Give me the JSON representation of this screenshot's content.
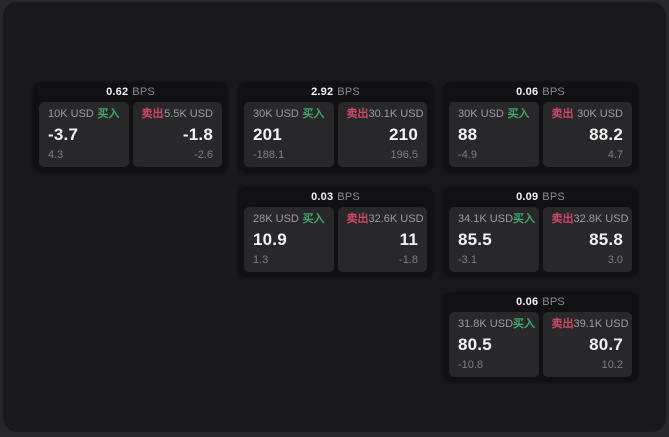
{
  "labels": {
    "bps_unit": "BPS",
    "buy": "买入",
    "sell": "卖出"
  },
  "colors": {
    "backdrop": "#27272a",
    "window-bg": "#19191c",
    "card-bg": "#111113",
    "panel-bg": "#28282b",
    "text-bright": "#f4f4f5",
    "text-gray": "#9b9ba1",
    "text-sub": "#7e7e84",
    "text-dim": "#8a8a90",
    "buy-green": "#3fa56a",
    "sell-red": "#cb4967"
  },
  "cards": [
    {
      "bps": "0.62",
      "buy": {
        "size": "10K USD",
        "price": "-3.7",
        "sub": "4.3"
      },
      "sell": {
        "size": "5.5K USD",
        "price": "-1.8",
        "sub": "-2.6"
      }
    },
    {
      "bps": "2.92",
      "buy": {
        "size": "30K USD",
        "price": "201",
        "sub": "-188.1"
      },
      "sell": {
        "size": "30.1K USD",
        "price": "210",
        "sub": "196.5"
      }
    },
    {
      "bps": "0.06",
      "buy": {
        "size": "30K USD",
        "price": "88",
        "sub": "-4.9"
      },
      "sell": {
        "size": "30K USD",
        "price": "88.2",
        "sub": "4.7"
      }
    },
    {
      "bps": "0.03",
      "buy": {
        "size": "28K USD",
        "price": "10.9",
        "sub": "1.3"
      },
      "sell": {
        "size": "32.6K USD",
        "price": "11",
        "sub": "-1.8"
      }
    },
    {
      "bps": "0.09",
      "buy": {
        "size": "34.1K USD",
        "price": "85.5",
        "sub": "-3.1"
      },
      "sell": {
        "size": "32.8K USD",
        "price": "85.8",
        "sub": "3.0"
      }
    },
    {
      "bps": "0.06",
      "buy": {
        "size": "31.8K USD",
        "price": "80.5",
        "sub": "-10.8"
      },
      "sell": {
        "size": "39.1K USD",
        "price": "80.7",
        "sub": "10.2"
      }
    }
  ]
}
